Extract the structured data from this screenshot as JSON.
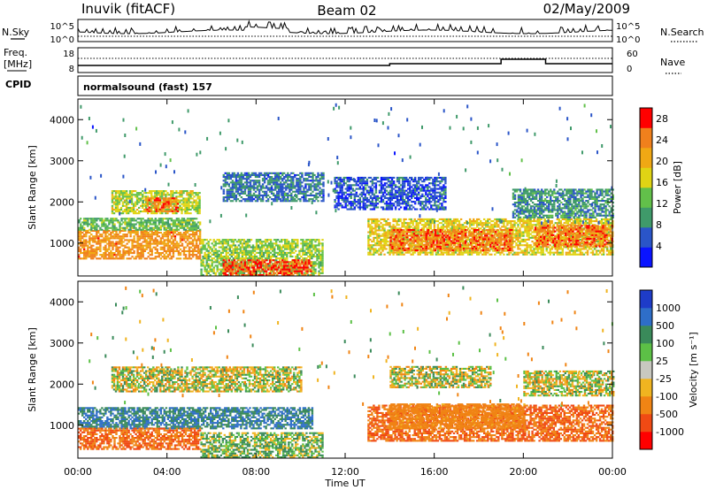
{
  "header": {
    "station": "Inuvik (fitACF)",
    "beam": "Beam 02",
    "date": "02/May/2009"
  },
  "aux_labels": {
    "nsky": "N.Sky",
    "nsearch": "N.Search",
    "freq": "Freq.",
    "freq_unit": "[MHz]",
    "nave": "Nave",
    "cpid": "CPID",
    "cpid_value": "normalsound (fast) 157"
  },
  "aux_ticks": {
    "noise_left": [
      "10^5",
      "10^0"
    ],
    "noise_right": [
      "10^5",
      "10^0"
    ],
    "freq_left": [
      "18",
      "8"
    ],
    "nave_right": [
      "60",
      "0"
    ]
  },
  "colors": {
    "power_scale": [
      "#0a14ff",
      "#2a55c8",
      "#3f9a6a",
      "#62c04a",
      "#e0d414",
      "#f0a814",
      "#f0801c",
      "#ff0000"
    ],
    "velocity_scale": [
      "#1e3cc8",
      "#2e6ec8",
      "#3a8a5a",
      "#5cc046",
      "#c8c8c0",
      "#f0b420",
      "#f08414",
      "#f04a14",
      "#ff0000"
    ],
    "scatter_gray": "#c8c8c0"
  },
  "chart_data": [
    {
      "type": "heatmap",
      "name": "power",
      "ylabel": "Slant Range [km]",
      "xlabel": "",
      "xlim": [
        0,
        24
      ],
      "ylim": [
        200,
        4500
      ],
      "x_ticks": [
        "00:00",
        "04:00",
        "08:00",
        "12:00",
        "16:00",
        "20:00",
        "00:00"
      ],
      "y_ticks": [
        1000,
        2000,
        3000,
        4000
      ],
      "colorbar": {
        "label": "Power [dB]",
        "ticks": [
          "4",
          "8",
          "12",
          "16",
          "20",
          "24",
          "28"
        ],
        "range": [
          0,
          30
        ]
      },
      "bands": [
        {
          "t0": 0.0,
          "t1": 5.5,
          "r0": 600,
          "r1": 1300,
          "level": 24
        },
        {
          "t0": 0.0,
          "t1": 5.5,
          "r0": 1300,
          "r1": 1600,
          "level": 12
        },
        {
          "t0": 1.5,
          "t1": 5.5,
          "r0": 1700,
          "r1": 2250,
          "level": 16
        },
        {
          "t0": 3.0,
          "t1": 4.5,
          "r0": 1750,
          "r1": 2100,
          "level": 26
        },
        {
          "t0": 5.5,
          "t1": 11.0,
          "r0": 200,
          "r1": 1100,
          "level": 14
        },
        {
          "t0": 6.5,
          "t1": 10.5,
          "r0": 200,
          "r1": 600,
          "level": 28
        },
        {
          "t0": 6.5,
          "t1": 11.0,
          "r0": 2000,
          "r1": 2700,
          "level": 6
        },
        {
          "t0": 13.0,
          "t1": 24.0,
          "r0": 700,
          "r1": 1600,
          "level": 18
        },
        {
          "t0": 14.0,
          "t1": 19.5,
          "r0": 800,
          "r1": 1300,
          "level": 26
        },
        {
          "t0": 20.5,
          "t1": 24.0,
          "r0": 900,
          "r1": 1400,
          "level": 26
        },
        {
          "t0": 11.5,
          "t1": 16.5,
          "r0": 1800,
          "r1": 2600,
          "level": 4
        },
        {
          "t0": 19.5,
          "t1": 24.0,
          "r0": 1600,
          "r1": 2300,
          "level": 8
        }
      ]
    },
    {
      "type": "heatmap",
      "name": "velocity",
      "ylabel": "Slant Range [km]",
      "xlabel": "Time UT",
      "xlim": [
        0,
        24
      ],
      "ylim": [
        200,
        4500
      ],
      "x_ticks": [
        "00:00",
        "04:00",
        "08:00",
        "12:00",
        "16:00",
        "20:00",
        "00:00"
      ],
      "y_ticks": [
        1000,
        2000,
        3000,
        4000
      ],
      "colorbar": {
        "label": "Velocity [m s⁻¹]",
        "ticks": [
          "1000",
          "500",
          "100",
          "25",
          "-25",
          "-100",
          "-500",
          "-1000"
        ]
      },
      "bands": [
        {
          "t0": 0.0,
          "t1": 10.5,
          "r0": 900,
          "r1": 1400,
          "vel": 300
        },
        {
          "t0": 0.0,
          "t1": 5.5,
          "r0": 400,
          "r1": 900,
          "vel": -300
        },
        {
          "t0": 1.5,
          "t1": 10.0,
          "r0": 1800,
          "r1": 2400,
          "vel": 0
        },
        {
          "t0": 5.5,
          "t1": 11.0,
          "r0": 200,
          "r1": 800,
          "vel": 50
        },
        {
          "t0": 13.0,
          "t1": 24.0,
          "r0": 600,
          "r1": 1500,
          "vel": -300
        },
        {
          "t0": 14.0,
          "t1": 20.0,
          "r0": 900,
          "r1": 1500,
          "vel": -150
        },
        {
          "t0": 14.0,
          "t1": 18.5,
          "r0": 1900,
          "r1": 2400,
          "vel": 0
        },
        {
          "t0": 20.0,
          "t1": 24.0,
          "r0": 1700,
          "r1": 2300,
          "vel": 0
        }
      ]
    }
  ]
}
